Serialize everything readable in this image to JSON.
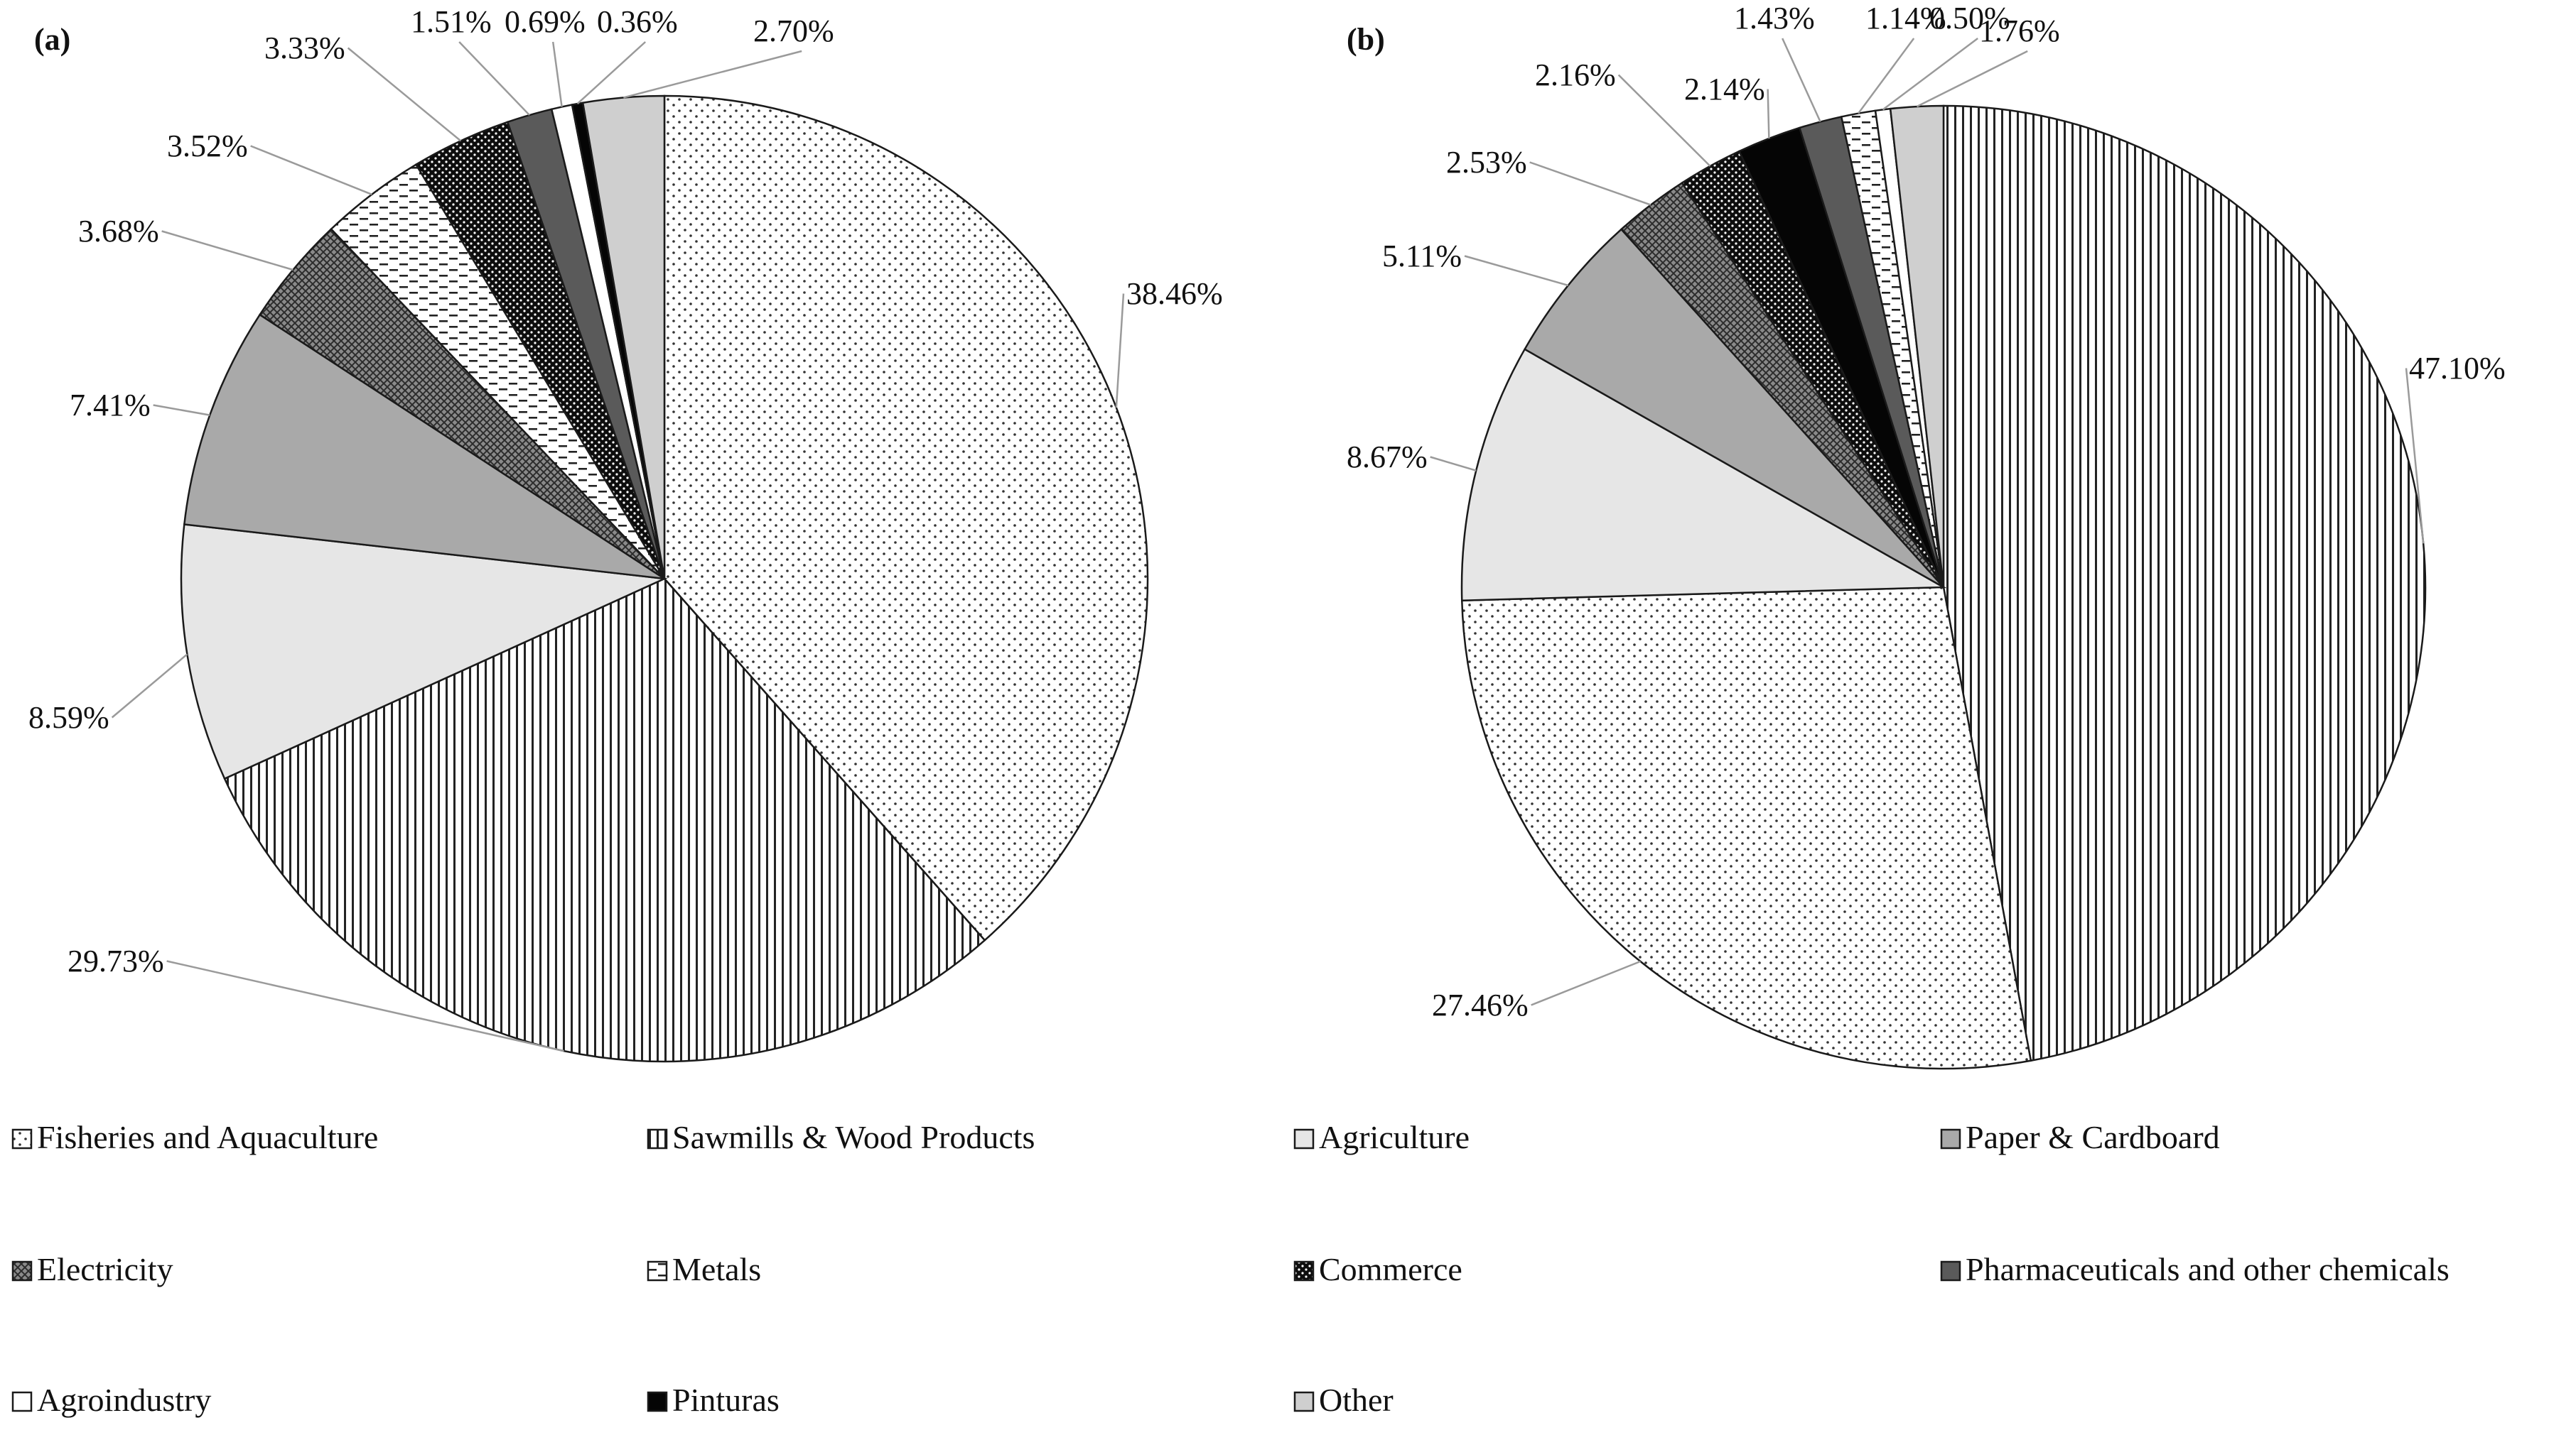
{
  "chart_data": [
    {
      "type": "pie",
      "panel_label": "(a)",
      "categories": [
        "Fisheries and Aquaculture",
        "Sawmills & Wood Products",
        "Agriculture",
        "Paper & Cardboard",
        "Electricity",
        "Metals",
        "Commerce",
        "Pharmaceuticals and other chemicals",
        "Agroindustry",
        "Pinturas",
        "Other"
      ],
      "values": [
        38.46,
        29.73,
        8.59,
        7.41,
        3.68,
        3.52,
        3.33,
        1.51,
        0.69,
        0.36,
        2.7
      ],
      "labels": [
        "38.46%",
        "29.73%",
        "8.59%",
        "7.41%",
        "3.68%",
        "3.52%",
        "3.33%",
        "1.51%",
        "0.69%",
        "0.36%",
        "2.70%"
      ]
    },
    {
      "type": "pie",
      "panel_label": "(b)",
      "categories": [
        "Sawmills & Wood Products",
        "Fisheries and Aquaculture",
        "Agriculture",
        "Paper & Cardboard",
        "Electricity",
        "Commerce",
        "Pinturas",
        "Pharmaceuticals and other chemicals",
        "Metals",
        "Agroindustry",
        "Other"
      ],
      "values": [
        47.1,
        27.46,
        8.67,
        5.11,
        2.53,
        2.16,
        2.14,
        1.43,
        1.14,
        0.5,
        1.76
      ],
      "labels": [
        "47.10%",
        "27.46%",
        "8.67%",
        "5.11%",
        "2.53%",
        "2.16%",
        "2.14%",
        "1.43%",
        "1.14%",
        "0.50%",
        "1.76%"
      ]
    }
  ],
  "legend": {
    "placement": "bottom",
    "items": [
      {
        "name": "Fisheries and Aquaculture",
        "pattern": "dots-fine"
      },
      {
        "name": "Sawmills & Wood Products",
        "pattern": "vlines"
      },
      {
        "name": "Agriculture",
        "pattern": "light-gray"
      },
      {
        "name": "Paper & Cardboard",
        "pattern": "mid-gray"
      },
      {
        "name": "Electricity",
        "pattern": "crosshatch"
      },
      {
        "name": "Metals",
        "pattern": "dashes"
      },
      {
        "name": "Commerce",
        "pattern": "black-dots"
      },
      {
        "name": "Pharmaceuticals and other chemicals",
        "pattern": "dark-gray"
      },
      {
        "name": "Agroindustry",
        "pattern": "white"
      },
      {
        "name": "Pinturas",
        "pattern": "black"
      },
      {
        "name": "Other",
        "pattern": "silver"
      }
    ]
  }
}
